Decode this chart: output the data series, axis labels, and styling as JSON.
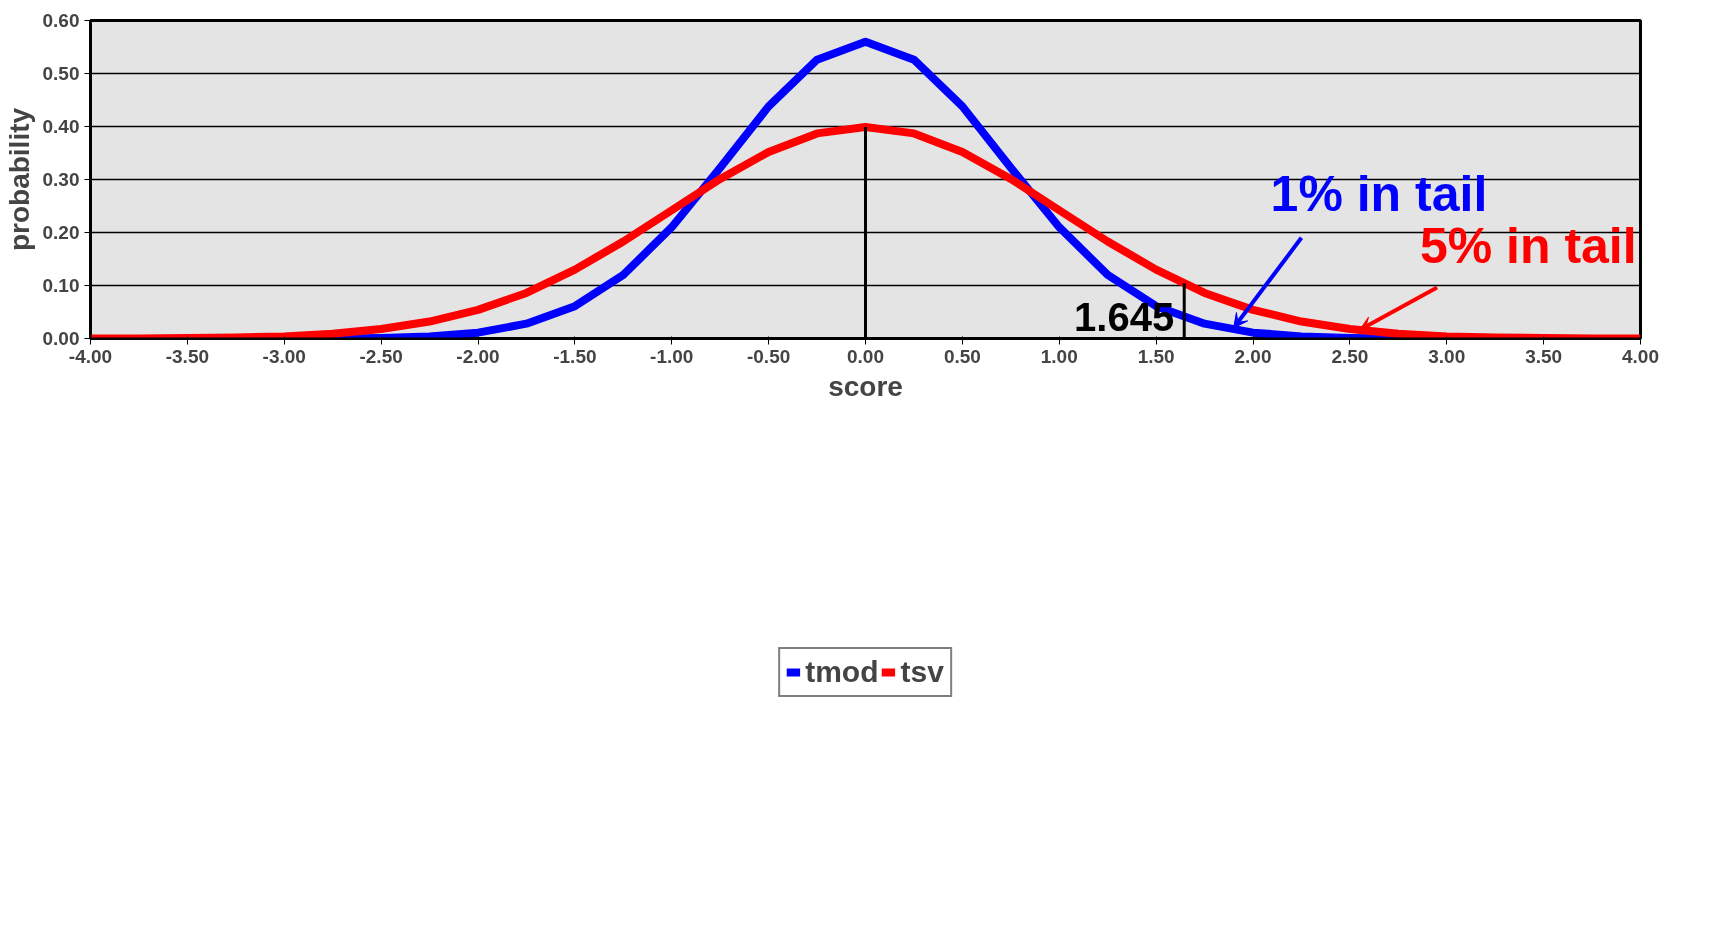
{
  "chart_data": {
    "type": "line",
    "xlabel": "score",
    "ylabel": "probability",
    "x": [
      -4,
      -3.75,
      -3.5,
      -3.25,
      -3,
      -2.75,
      -2.5,
      -2.25,
      -2,
      -1.75,
      -1.5,
      -1.25,
      -1,
      -0.75,
      -0.5,
      -0.25,
      0,
      0.25,
      0.5,
      0.75,
      1,
      1.25,
      1.5,
      1.75,
      2,
      2.25,
      2.5,
      2.75,
      3,
      3.25,
      3.5,
      3.75,
      4
    ],
    "series": [
      {
        "name": "tmod",
        "color": "#0000ff",
        "values": [
          null,
          null,
          null,
          null,
          0,
          0,
          0.001,
          0.004,
          0.011,
          0.028,
          0.061,
          0.12,
          0.21,
          0.322,
          0.438,
          0.526,
          0.56,
          0.526,
          0.438,
          0.322,
          0.21,
          0.12,
          0.061,
          0.028,
          0.011,
          0.004,
          0.001,
          0,
          0,
          null,
          null,
          null,
          null
        ]
      },
      {
        "name": "tsv",
        "color": "#ff0000",
        "values": [
          0,
          0,
          0.001,
          0.002,
          0.004,
          0.009,
          0.018,
          0.032,
          0.054,
          0.086,
          0.13,
          0.183,
          0.242,
          0.301,
          0.352,
          0.387,
          0.399,
          0.387,
          0.352,
          0.301,
          0.242,
          0.183,
          0.13,
          0.086,
          0.054,
          0.032,
          0.018,
          0.009,
          0.004,
          0.002,
          0.001,
          0,
          0
        ]
      }
    ],
    "xlim": [
      -4,
      4
    ],
    "ylim": [
      0,
      0.6
    ],
    "xticks": [
      {
        "value": -4,
        "label": "-4.00"
      },
      {
        "value": -3.5,
        "label": "-3.50"
      },
      {
        "value": -3,
        "label": "-3.00"
      },
      {
        "value": -2.5,
        "label": "-2.50"
      },
      {
        "value": -2,
        "label": "-2.00"
      },
      {
        "value": -1.5,
        "label": "-1.50"
      },
      {
        "value": -1,
        "label": "-1.00"
      },
      {
        "value": -0.5,
        "label": "-0.50"
      },
      {
        "value": 0,
        "label": "0.00"
      },
      {
        "value": 0.5,
        "label": "0.50"
      },
      {
        "value": 1,
        "label": "1.00"
      },
      {
        "value": 1.5,
        "label": "1.50"
      },
      {
        "value": 2,
        "label": "2.00"
      },
      {
        "value": 2.5,
        "label": "2.50"
      },
      {
        "value": 3,
        "label": "3.00"
      },
      {
        "value": 3.5,
        "label": "3.50"
      },
      {
        "value": 4,
        "label": "4.00"
      }
    ],
    "yticks": [
      {
        "value": 0,
        "label": "0.00"
      },
      {
        "value": 0.1,
        "label": "0.10"
      },
      {
        "value": 0.2,
        "label": "0.20"
      },
      {
        "value": 0.3,
        "label": "0.30"
      },
      {
        "value": 0.4,
        "label": "0.40"
      },
      {
        "value": 0.5,
        "label": "0.50"
      },
      {
        "value": 0.6,
        "label": "0.60"
      }
    ],
    "ref_lines": [
      {
        "axis": "x",
        "value": 0,
        "color": "#000000"
      },
      {
        "axis": "x",
        "value": 1.645,
        "label": "1.645",
        "color": "#000000"
      }
    ],
    "annotations": [
      {
        "text": "1% in tail",
        "x": 1.9,
        "y": 0.02
      },
      {
        "text": "5% in tail",
        "x": 2.55,
        "y": 0.016
      }
    ],
    "grid": "y",
    "legend": "bottom",
    "line_style": "solid",
    "marker": "none"
  }
}
